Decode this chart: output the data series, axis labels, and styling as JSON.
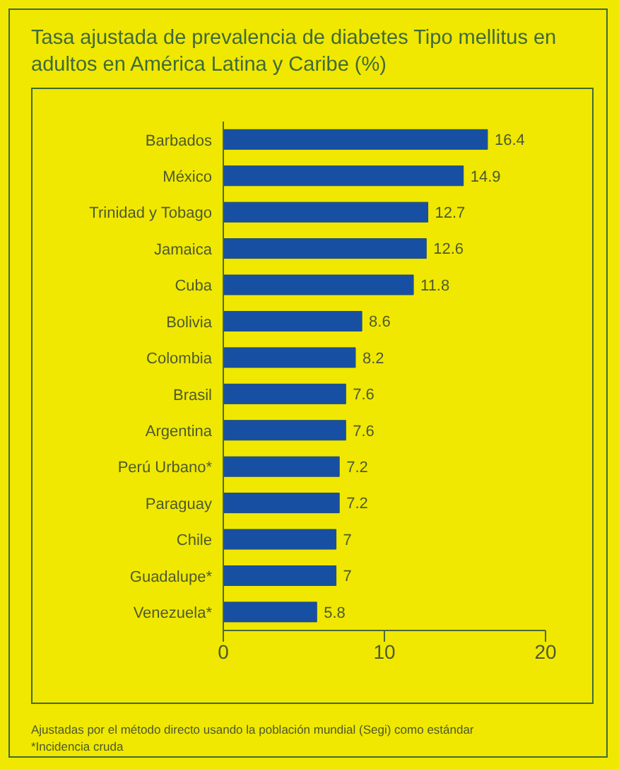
{
  "chart_data": {
    "type": "bar",
    "orientation": "horizontal",
    "title": "Tasa ajustada de prevalencia de diabetes Tipo mellitus en adultos en América Latina y Caribe (%)",
    "categories": [
      "Barbados",
      "México",
      "Trinidad y Tobago",
      "Jamaica",
      "Cuba",
      "Bolivia",
      "Colombia",
      "Brasil",
      "Argentina",
      "Perú Urbano*",
      "Paraguay",
      "Chile",
      "Guadalupe*",
      "Venezuela*"
    ],
    "values": [
      16.4,
      14.9,
      12.7,
      12.6,
      11.8,
      8.6,
      8.2,
      7.6,
      7.6,
      7.2,
      7.2,
      7,
      7,
      5.8
    ],
    "color": "#1750a3",
    "data_labels": true,
    "xlim": [
      0,
      20
    ],
    "xticks": [
      0,
      10,
      20
    ],
    "grid": false,
    "legend": false,
    "annotations": [
      "Ajustadas por el método directo usando la población mundial (Segi) como estándar",
      "*Incidencia cruda"
    ]
  }
}
